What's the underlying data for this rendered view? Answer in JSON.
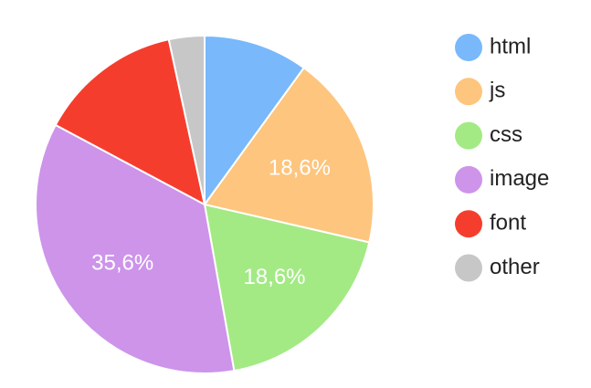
{
  "chart_data": {
    "type": "pie",
    "categories": [
      "html",
      "js",
      "css",
      "image",
      "font",
      "other"
    ],
    "values": [
      10.0,
      18.6,
      18.6,
      35.6,
      13.8,
      3.4
    ],
    "value_labels": [
      null,
      "18,6%",
      "18,6%",
      "35,6%",
      null,
      null
    ],
    "colors": [
      "#79b8fb",
      "#fdc57e",
      "#a3ea85",
      "#cd94ea",
      "#f53d2e",
      "#c7c7c7"
    ],
    "legend": "right"
  }
}
